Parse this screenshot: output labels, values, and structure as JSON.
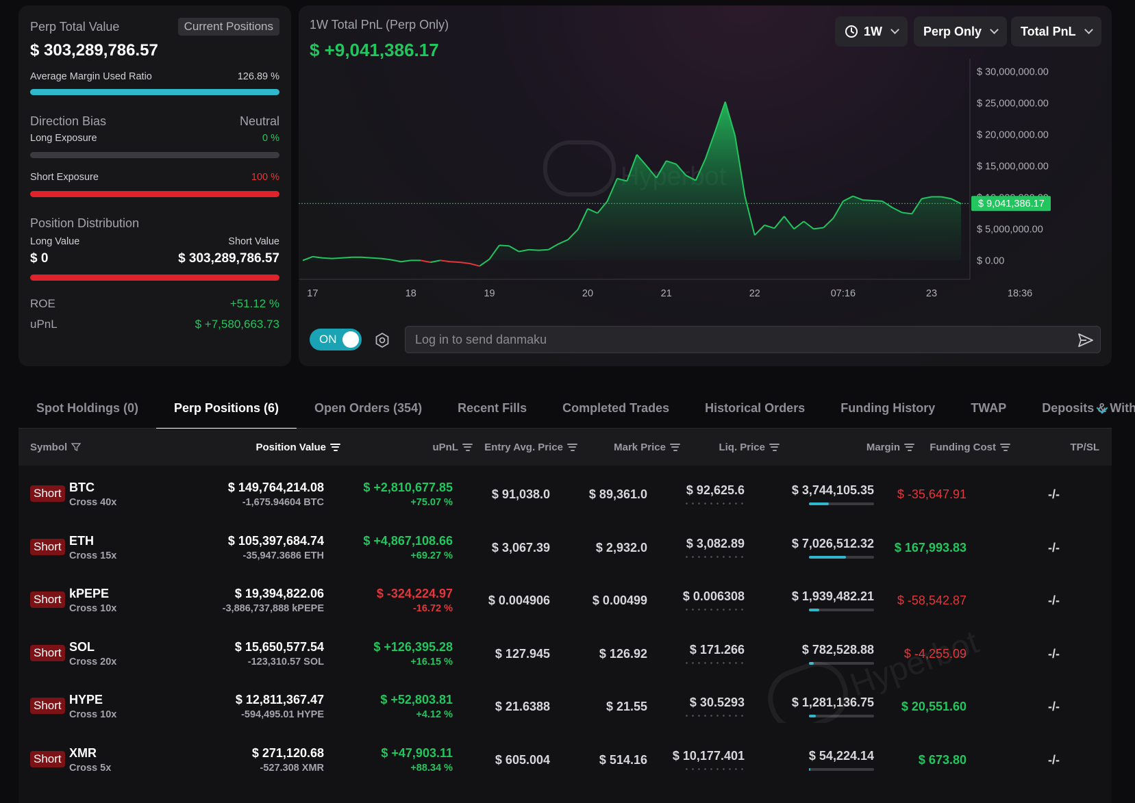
{
  "summary": {
    "perp_total_value_label": "Perp Total Value",
    "current_positions_label": "Current Positions",
    "perp_total_value": "$ 303,289,786.57",
    "avg_margin_label": "Average Margin Used Ratio",
    "avg_margin_value": "126.89 %",
    "avg_margin_fraction": 1.0,
    "direction_bias_label": "Direction Bias",
    "direction_bias_value": "Neutral",
    "long_exposure_label": "Long Exposure",
    "long_exposure_value": "0 %",
    "short_exposure_label": "Short Exposure",
    "short_exposure_value": "100 %",
    "position_distribution_label": "Position Distribution",
    "long_value_label": "Long Value",
    "short_value_label": "Short Value",
    "long_value": "$ 0",
    "short_value": "$ 303,289,786.57",
    "roe_label": "ROE",
    "roe_value": "+51.12 %",
    "upnl_label": "uPnL",
    "upnl_value": "$ +7,580,663.73"
  },
  "chart_panel": {
    "title": "1W Total PnL (Perp Only)",
    "value": "$ +9,041,386.17",
    "range_button": "1W",
    "scope_button": "Perp Only",
    "metric_button": "Total PnL",
    "toggle_label": "ON",
    "danmaku_placeholder": "Log in to send danmaku",
    "watermark": "Hyperbot",
    "colors": {
      "up": "#22c55e",
      "down": "#e5353a",
      "accent": "#2fb8cc"
    }
  },
  "chart_data": {
    "type": "area",
    "y_ticks": [
      "$ 30,000,000.00",
      "$ 25,000,000.00",
      "$ 20,000,000.00",
      "$ 15,000,000.00",
      "$ 10,000,000.00",
      "$ 5,000,000.00",
      "$ 0.00"
    ],
    "y_tick_values": [
      30000000,
      25000000,
      20000000,
      15000000,
      10000000,
      5000000,
      0
    ],
    "ylim": [
      -3000000,
      32000000
    ],
    "x_ticks": [
      "17",
      "18",
      "19",
      "20",
      "21",
      "22",
      "07:16",
      "23",
      "18:36"
    ],
    "x_tick_index": [
      1,
      11,
      19,
      29,
      37,
      46,
      55,
      64,
      73
    ],
    "current_value_label": "$ 9,041,386.17",
    "current_value": 9041386.17,
    "grid": false,
    "series": [
      {
        "values": [
          0,
          600000,
          400000,
          300000,
          400000,
          500000,
          500000,
          400000,
          300000,
          100000,
          -200000,
          0,
          0,
          -300000,
          0,
          -200000,
          -300000,
          -500000,
          -900000,
          200000,
          2400000,
          2300000,
          1400000,
          1700000,
          1600000,
          1700000,
          2600000,
          3300000,
          4900000,
          8200000,
          7500000,
          9400000,
          13000000,
          12600000,
          16800000,
          15000000,
          13100000,
          15800000,
          15300000,
          13500000,
          12700000,
          16200000,
          20600000,
          25200000,
          19800000,
          10200000,
          4000000,
          5600000,
          5100000,
          7000000,
          5000000,
          6200000,
          5000000,
          5200000,
          6700000,
          9400000,
          10200000,
          9600000,
          9500000,
          9400000,
          8400000,
          7600000,
          7400000,
          9800000,
          10100000,
          10100000,
          9800000,
          9000000
        ]
      }
    ]
  },
  "tabs": [
    {
      "label": "Spot Holdings (0)",
      "active": false
    },
    {
      "label": "Perp Positions (6)",
      "active": true
    },
    {
      "label": "Open Orders (354)",
      "active": false
    },
    {
      "label": "Recent Fills",
      "active": false
    },
    {
      "label": "Completed Trades",
      "active": false
    },
    {
      "label": "Historical Orders",
      "active": false
    },
    {
      "label": "Funding History",
      "active": false
    },
    {
      "label": "TWAP",
      "active": false
    },
    {
      "label": "Deposits & Withd",
      "active": false
    }
  ],
  "table": {
    "headers": {
      "symbol": "Symbol",
      "position_value": "Position Value",
      "upnl": "uPnL",
      "entry": "Entry Avg. Price",
      "mark": "Mark Price",
      "liq": "Liq. Price",
      "margin": "Margin",
      "funding": "Funding Cost",
      "tpsl": "TP/SL"
    },
    "rows": [
      {
        "side": "Short",
        "symbol": "BTC",
        "leverage": "Cross 40x",
        "position_value": "$ 149,764,214.08",
        "size": "-1,675.94604 BTC",
        "upnl": "$ +2,810,677.85",
        "upnl_pct": "+75.07 %",
        "upnl_positive": true,
        "entry": "$ 91,038.0",
        "mark": "$ 89,361.0",
        "liq": "$ 92,625.6",
        "margin": "$ 3,744,105.35",
        "margin_fraction": 0.3,
        "funding": "$ -35,647.91",
        "funding_positive": false,
        "tpsl": "-/-"
      },
      {
        "side": "Short",
        "symbol": "ETH",
        "leverage": "Cross 15x",
        "position_value": "$ 105,397,684.74",
        "size": "-35,947.3686 ETH",
        "upnl": "$ +4,867,108.66",
        "upnl_pct": "+69.27 %",
        "upnl_positive": true,
        "entry": "$ 3,067.39",
        "mark": "$ 2,932.0",
        "liq": "$ 3,082.89",
        "margin": "$ 7,026,512.32",
        "margin_fraction": 0.57,
        "funding": "$ 167,993.83",
        "funding_positive": true,
        "tpsl": "-/-"
      },
      {
        "side": "Short",
        "symbol": "kPEPE",
        "leverage": "Cross 10x",
        "position_value": "$ 19,394,822.06",
        "size": "-3,886,737,888 kPEPE",
        "upnl": "$ -324,224.97",
        "upnl_pct": "-16.72 %",
        "upnl_positive": false,
        "entry": "$ 0.004906",
        "mark": "$ 0.00499",
        "liq": "$ 0.006308",
        "margin": "$ 1,939,482.21",
        "margin_fraction": 0.16,
        "funding": "$ -58,542.87",
        "funding_positive": false,
        "tpsl": "-/-"
      },
      {
        "side": "Short",
        "symbol": "SOL",
        "leverage": "Cross 20x",
        "position_value": "$ 15,650,577.54",
        "size": "-123,310.57 SOL",
        "upnl": "$ +126,395.28",
        "upnl_pct": "+16.15 %",
        "upnl_positive": true,
        "entry": "$ 127.945",
        "mark": "$ 126.92",
        "liq": "$ 171.266",
        "margin": "$ 782,528.88",
        "margin_fraction": 0.07,
        "funding": "$ -4,255.09",
        "funding_positive": false,
        "tpsl": "-/-"
      },
      {
        "side": "Short",
        "symbol": "HYPE",
        "leverage": "Cross 10x",
        "position_value": "$ 12,811,367.47",
        "size": "-594,495.01 HYPE",
        "upnl": "$ +52,803.81",
        "upnl_pct": "+4.12 %",
        "upnl_positive": true,
        "entry": "$ 21.6388",
        "mark": "$ 21.55",
        "liq": "$ 30.5293",
        "margin": "$ 1,281,136.75",
        "margin_fraction": 0.1,
        "funding": "$ 20,551.60",
        "funding_positive": true,
        "tpsl": "-/-"
      },
      {
        "side": "Short",
        "symbol": "XMR",
        "leverage": "Cross 5x",
        "position_value": "$ 271,120.68",
        "size": "-527.308 XMR",
        "upnl": "$ +47,903.11",
        "upnl_pct": "+88.34 %",
        "upnl_positive": true,
        "entry": "$ 605.004",
        "mark": "$ 514.16",
        "liq": "$ 10,177.401",
        "margin": "$ 54,224.14",
        "margin_fraction": 0.02,
        "funding": "$ 673.80",
        "funding_positive": true,
        "tpsl": "-/-"
      }
    ]
  }
}
